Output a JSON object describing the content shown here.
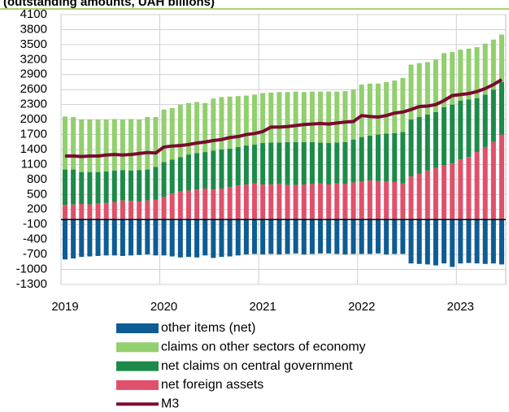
{
  "chart_data": {
    "type": "bar",
    "title": "(outstanding amounts, UAH billions)",
    "categories": [
      "2019",
      null,
      null,
      null,
      null,
      null,
      null,
      null,
      null,
      null,
      null,
      null,
      "2020",
      null,
      null,
      null,
      null,
      null,
      null,
      null,
      null,
      null,
      null,
      null,
      "2021",
      null,
      null,
      null,
      null,
      null,
      null,
      null,
      null,
      null,
      null,
      null,
      "2022",
      null,
      null,
      null,
      null,
      null,
      null,
      null,
      null,
      null,
      null,
      null,
      "2023",
      null,
      null,
      null,
      null,
      null
    ],
    "stacked": true,
    "grid": true,
    "ylim": [
      -1300,
      4100
    ],
    "yticks": [
      4100,
      3800,
      3500,
      3200,
      2900,
      2600,
      2300,
      2000,
      1700,
      1400,
      1100,
      800,
      500,
      200,
      -100,
      -400,
      -700,
      -1000,
      -1300
    ],
    "series": [
      {
        "name": "net foreign assets",
        "color": "#e0506a",
        "values": [
          290,
          300,
          310,
          300,
          320,
          330,
          350,
          380,
          370,
          360,
          380,
          400,
          450,
          520,
          560,
          580,
          600,
          620,
          600,
          620,
          650,
          680,
          700,
          720,
          700,
          700,
          710,
          690,
          690,
          700,
          710,
          720,
          700,
          720,
          710,
          740,
          760,
          780,
          770,
          760,
          750,
          720,
          860,
          920,
          980,
          1030,
          1080,
          1120,
          1200,
          1250,
          1350,
          1450,
          1550,
          1700
        ]
      },
      {
        "name": "net claims on central government",
        "color": "#1d8a4a",
        "values": [
          710,
          700,
          640,
          650,
          630,
          630,
          630,
          610,
          610,
          630,
          620,
          650,
          700,
          680,
          690,
          720,
          730,
          730,
          780,
          780,
          770,
          770,
          780,
          780,
          830,
          840,
          830,
          860,
          860,
          850,
          840,
          820,
          830,
          820,
          840,
          860,
          890,
          900,
          930,
          960,
          980,
          1030,
          1140,
          1130,
          1120,
          1120,
          1170,
          1180,
          1180,
          1150,
          1080,
          1050,
          1050,
          1050
        ]
      },
      {
        "name": "claims on other sectors of economy",
        "color": "#92cf6e",
        "values": [
          1060,
          1050,
          1050,
          1050,
          1050,
          1040,
          1030,
          1010,
          1030,
          1010,
          1050,
          1000,
          1050,
          1030,
          1050,
          1030,
          1020,
          980,
          1040,
          1050,
          1040,
          1020,
          1000,
          1000,
          1000,
          1000,
          1010,
          1000,
          1010,
          1000,
          1010,
          1020,
          1030,
          1020,
          1020,
          1000,
          1050,
          1040,
          1020,
          1030,
          1050,
          1080,
          1100,
          1080,
          1050,
          1050,
          1080,
          1050,
          1020,
          1020,
          1020,
          1020,
          1000,
          950
        ]
      },
      {
        "name": "other items (net)",
        "color": "#0e5c94",
        "values": [
          -800,
          -780,
          -750,
          -740,
          -730,
          -720,
          -720,
          -730,
          -720,
          -710,
          -700,
          -720,
          -720,
          -740,
          -760,
          -750,
          -760,
          -720,
          -770,
          -750,
          -740,
          -720,
          -700,
          -690,
          -700,
          -690,
          -700,
          -690,
          -680,
          -700,
          -690,
          -680,
          -680,
          -690,
          -700,
          -690,
          -690,
          -690,
          -680,
          -700,
          -690,
          -690,
          -880,
          -890,
          -900,
          -920,
          -880,
          -950,
          -880,
          -870,
          -880,
          -890,
          -880,
          -900
        ]
      },
      {
        "name": "M3",
        "type": "line",
        "color": "#7a0b2e",
        "values": [
          1270,
          1270,
          1260,
          1270,
          1270,
          1290,
          1300,
          1290,
          1300,
          1320,
          1340,
          1330,
          1450,
          1470,
          1480,
          1500,
          1530,
          1550,
          1580,
          1600,
          1640,
          1660,
          1700,
          1720,
          1760,
          1850,
          1850,
          1860,
          1880,
          1900,
          1910,
          1920,
          1910,
          1930,
          1950,
          1960,
          2080,
          2060,
          2050,
          2080,
          2130,
          2150,
          2200,
          2260,
          2270,
          2300,
          2380,
          2480,
          2500,
          2520,
          2560,
          2620,
          2700,
          2800
        ]
      }
    ]
  }
}
